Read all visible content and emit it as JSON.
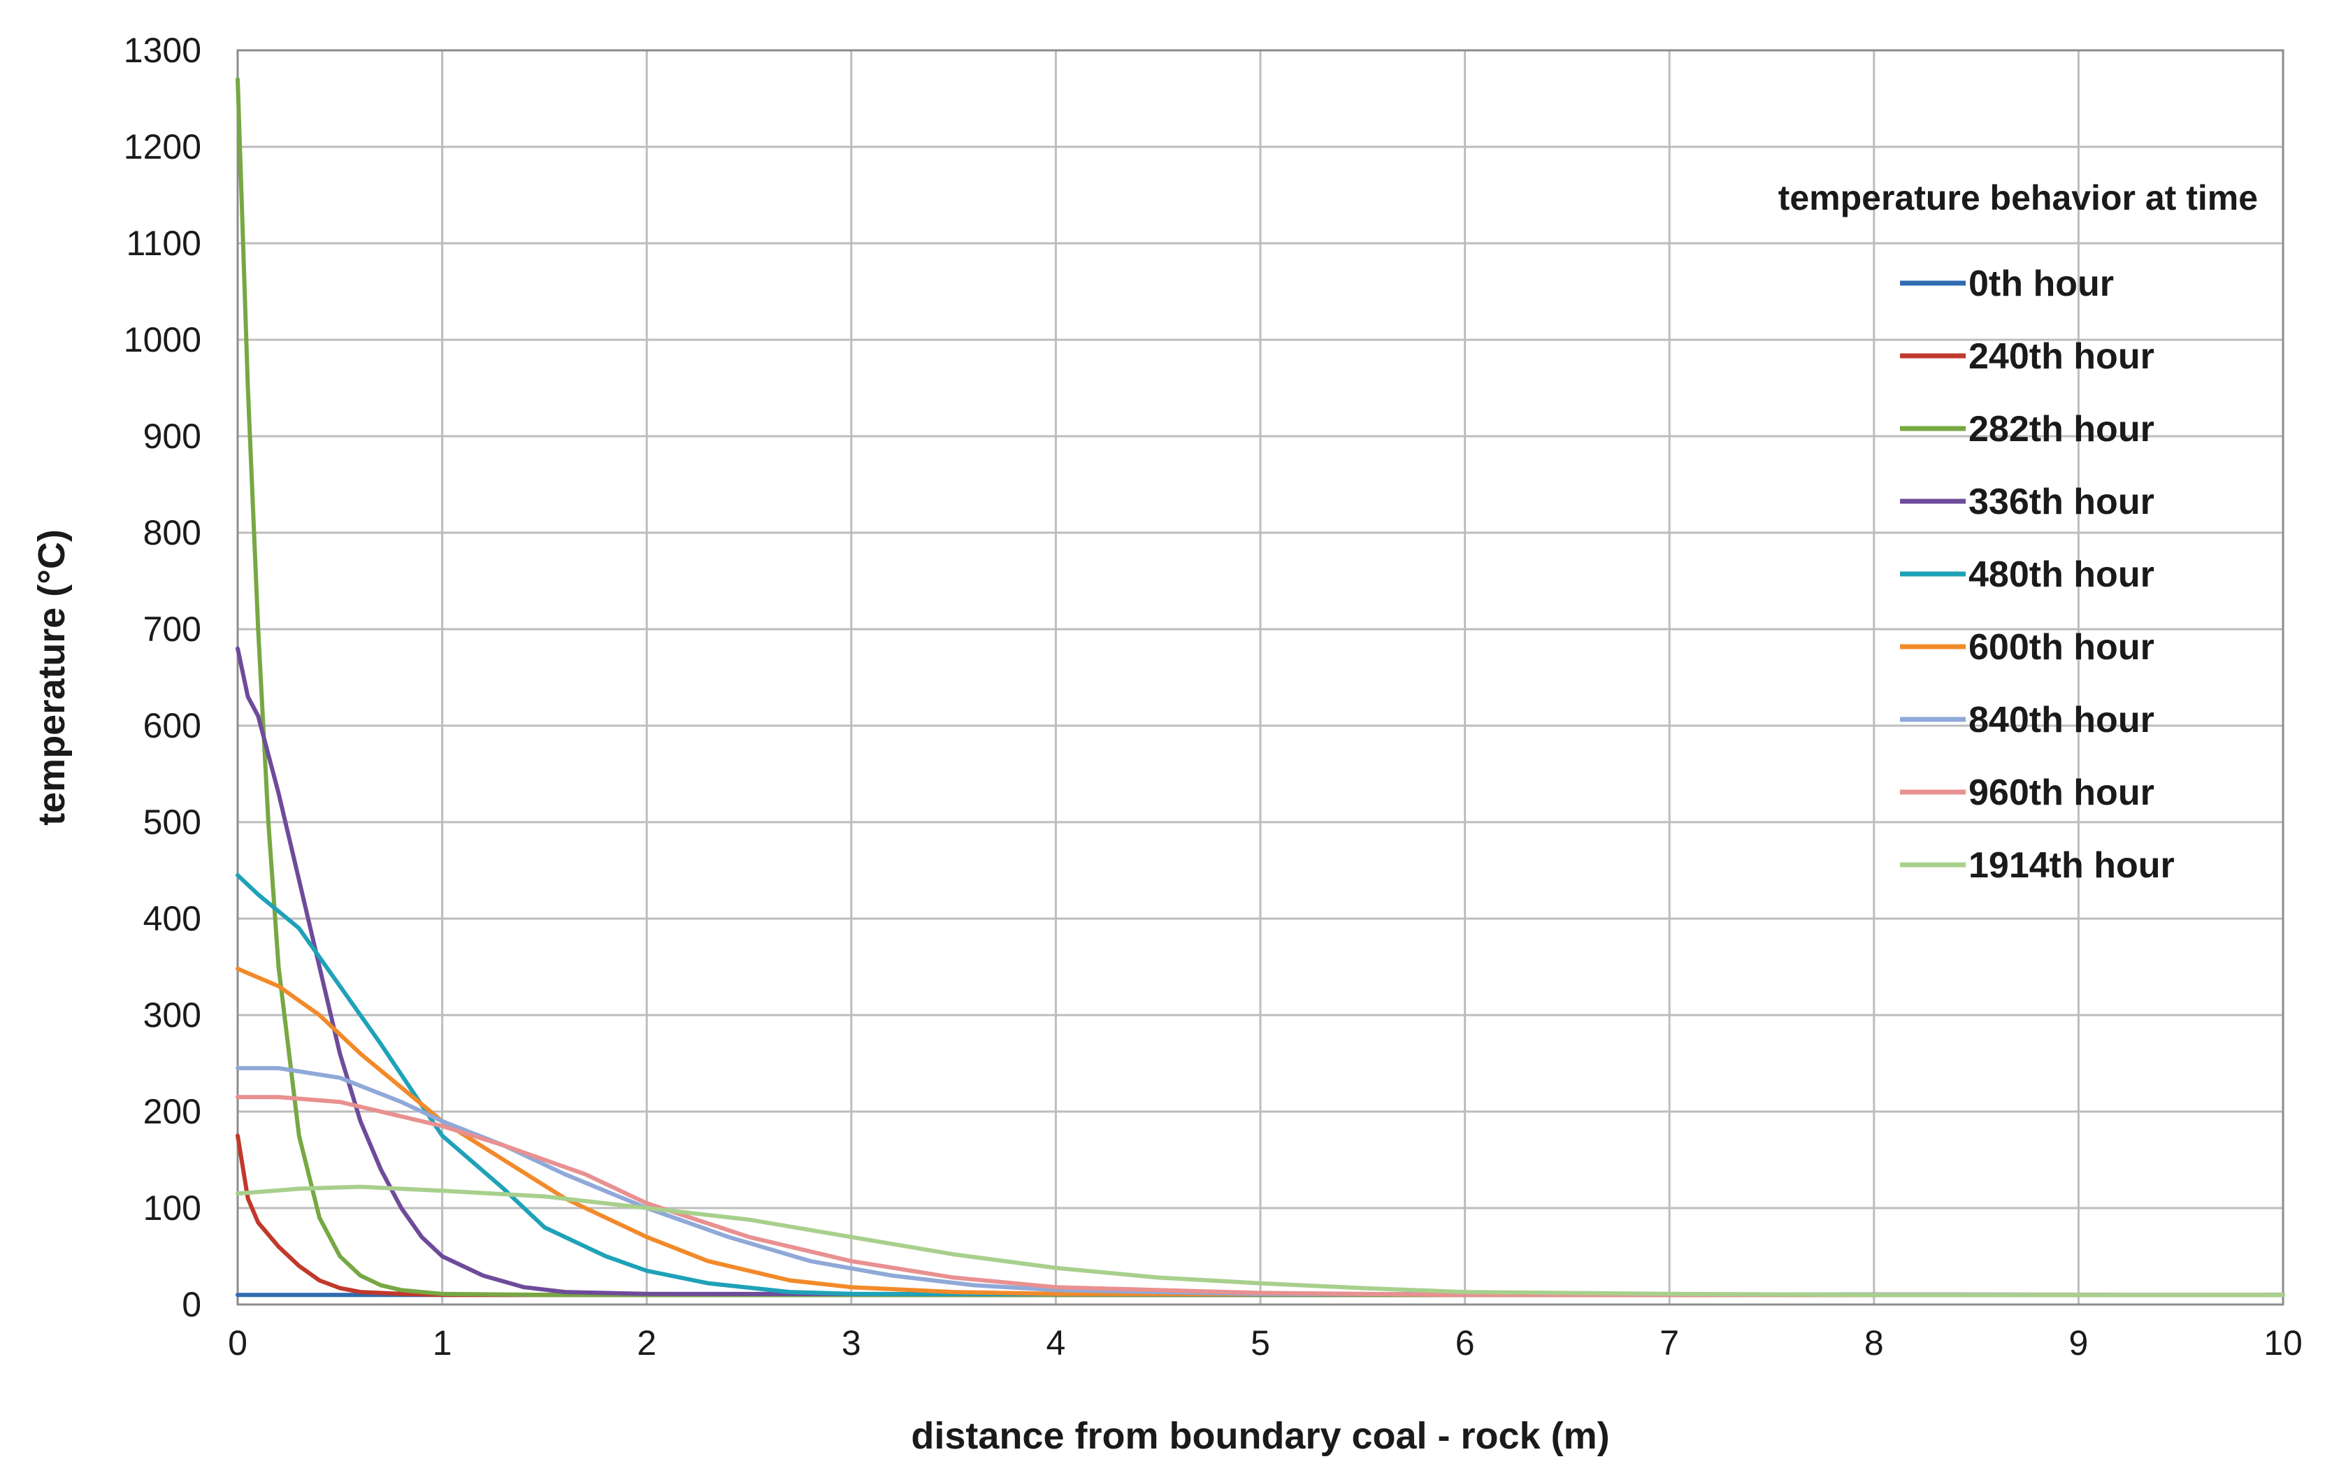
{
  "chart_data": {
    "type": "line",
    "title": "",
    "xlabel": "distance from boundary coal - rock (m)",
    "ylabel": "temperature (°C)",
    "xlim": [
      0,
      10
    ],
    "ylim": [
      0,
      1300
    ],
    "xticks": [
      0,
      1,
      2,
      3,
      4,
      5,
      6,
      7,
      8,
      9,
      10
    ],
    "yticks": [
      0,
      100,
      200,
      300,
      400,
      500,
      600,
      700,
      800,
      900,
      1000,
      1100,
      1200,
      1300
    ],
    "grid": true,
    "legend_title": "temperature behavior at time",
    "legend_position": "top-right",
    "series": [
      {
        "name": "0th hour",
        "color": "#2e6bb0",
        "points": [
          [
            0,
            10
          ],
          [
            1,
            10
          ],
          [
            2,
            10
          ],
          [
            4,
            10
          ],
          [
            6,
            10
          ],
          [
            8,
            10
          ],
          [
            10,
            10
          ]
        ]
      },
      {
        "name": "240th hour",
        "color": "#c0392b",
        "points": [
          [
            0,
            175
          ],
          [
            0.05,
            110
          ],
          [
            0.1,
            85
          ],
          [
            0.2,
            60
          ],
          [
            0.3,
            40
          ],
          [
            0.4,
            25
          ],
          [
            0.5,
            17
          ],
          [
            0.6,
            13
          ],
          [
            0.8,
            11
          ],
          [
            1,
            10
          ],
          [
            2,
            10
          ],
          [
            10,
            10
          ]
        ]
      },
      {
        "name": "282th hour",
        "color": "#77a843",
        "points": [
          [
            0,
            1270
          ],
          [
            0.05,
            950
          ],
          [
            0.1,
            700
          ],
          [
            0.15,
            500
          ],
          [
            0.2,
            350
          ],
          [
            0.3,
            175
          ],
          [
            0.4,
            90
          ],
          [
            0.5,
            50
          ],
          [
            0.6,
            30
          ],
          [
            0.7,
            20
          ],
          [
            0.8,
            15
          ],
          [
            1,
            11
          ],
          [
            1.5,
            10
          ],
          [
            10,
            10
          ]
        ]
      },
      {
        "name": "336th hour",
        "color": "#6e4b9a",
        "points": [
          [
            0,
            680
          ],
          [
            0.05,
            630
          ],
          [
            0.1,
            610
          ],
          [
            0.2,
            530
          ],
          [
            0.3,
            440
          ],
          [
            0.4,
            350
          ],
          [
            0.5,
            260
          ],
          [
            0.6,
            190
          ],
          [
            0.7,
            140
          ],
          [
            0.8,
            100
          ],
          [
            0.9,
            70
          ],
          [
            1,
            50
          ],
          [
            1.2,
            30
          ],
          [
            1.4,
            18
          ],
          [
            1.6,
            13
          ],
          [
            2,
            11
          ],
          [
            10,
            10
          ]
        ]
      },
      {
        "name": "480th hour",
        "color": "#1fa2b8",
        "points": [
          [
            0,
            445
          ],
          [
            0.1,
            425
          ],
          [
            0.3,
            390
          ],
          [
            0.5,
            330
          ],
          [
            0.7,
            270
          ],
          [
            1,
            175
          ],
          [
            1.3,
            120
          ],
          [
            1.5,
            80
          ],
          [
            1.8,
            50
          ],
          [
            2,
            35
          ],
          [
            2.3,
            22
          ],
          [
            2.7,
            13
          ],
          [
            3,
            11
          ],
          [
            10,
            10
          ]
        ]
      },
      {
        "name": "600th hour",
        "color": "#f28a2a",
        "points": [
          [
            0,
            348
          ],
          [
            0.2,
            330
          ],
          [
            0.4,
            300
          ],
          [
            0.6,
            260
          ],
          [
            0.8,
            225
          ],
          [
            1,
            190
          ],
          [
            1.3,
            150
          ],
          [
            1.6,
            110
          ],
          [
            2,
            70
          ],
          [
            2.3,
            45
          ],
          [
            2.7,
            25
          ],
          [
            3,
            18
          ],
          [
            3.5,
            13
          ],
          [
            4,
            11
          ],
          [
            10,
            10
          ]
        ]
      },
      {
        "name": "840th hour",
        "color": "#8fa9d8",
        "points": [
          [
            0,
            245
          ],
          [
            0.2,
            245
          ],
          [
            0.5,
            235
          ],
          [
            0.8,
            210
          ],
          [
            1,
            190
          ],
          [
            1.3,
            165
          ],
          [
            1.6,
            135
          ],
          [
            2,
            100
          ],
          [
            2.4,
            70
          ],
          [
            2.8,
            45
          ],
          [
            3.2,
            30
          ],
          [
            3.6,
            20
          ],
          [
            4,
            15
          ],
          [
            5,
            11
          ],
          [
            10,
            10
          ]
        ]
      },
      {
        "name": "960th hour",
        "color": "#e99090",
        "points": [
          [
            0,
            215
          ],
          [
            0.2,
            215
          ],
          [
            0.5,
            210
          ],
          [
            0.8,
            195
          ],
          [
            1,
            185
          ],
          [
            1.3,
            165
          ],
          [
            1.7,
            135
          ],
          [
            2,
            105
          ],
          [
            2.5,
            70
          ],
          [
            3,
            45
          ],
          [
            3.5,
            28
          ],
          [
            4,
            18
          ],
          [
            5,
            12
          ],
          [
            6,
            10
          ],
          [
            10,
            10
          ]
        ]
      },
      {
        "name": "1914th hour",
        "color": "#a8d08d",
        "points": [
          [
            0,
            115
          ],
          [
            0.3,
            120
          ],
          [
            0.6,
            122
          ],
          [
            1,
            118
          ],
          [
            1.5,
            112
          ],
          [
            2,
            100
          ],
          [
            2.5,
            88
          ],
          [
            3,
            70
          ],
          [
            3.5,
            52
          ],
          [
            4,
            38
          ],
          [
            4.5,
            28
          ],
          [
            5,
            22
          ],
          [
            5.5,
            17
          ],
          [
            6,
            13
          ],
          [
            7,
            11
          ],
          [
            8,
            10
          ],
          [
            10,
            10
          ]
        ]
      }
    ]
  }
}
